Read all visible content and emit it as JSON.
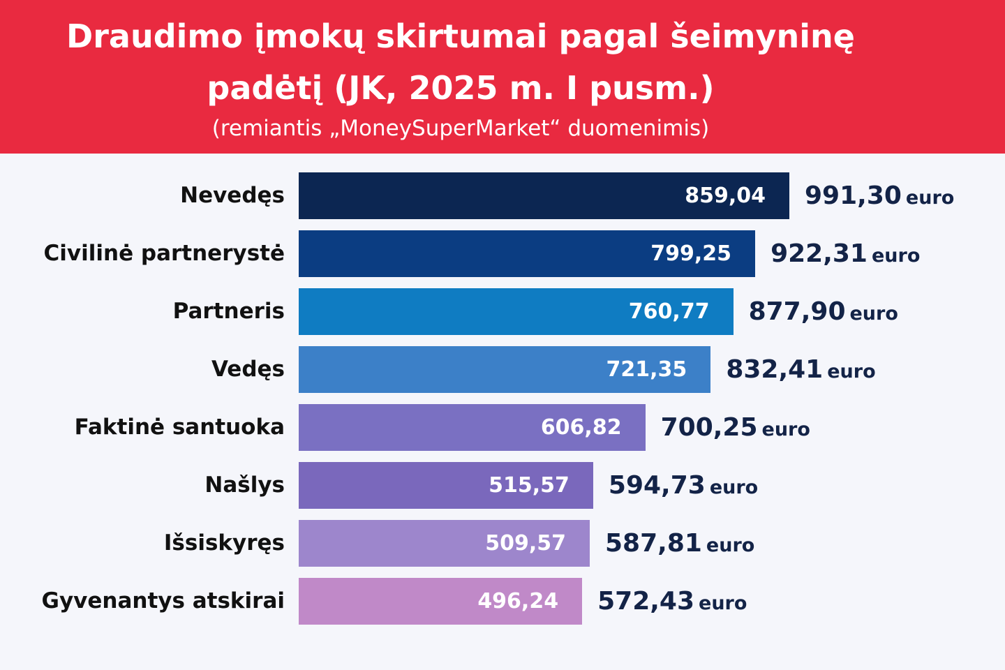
{
  "title_line1": "Draudimo įmokų skirtumai pagal šeimyninę",
  "title_line2": "padėtį (JK, 2025 m. I pusm.)",
  "subtitle": "(remiantis „MoneySuperMarket“ duomenimis)",
  "colors": {
    "header": "#e92a40",
    "total_text": "#132347",
    "bars": [
      "#0c2652",
      "#0b3d82",
      "#0f7cc2",
      "#3c80c8",
      "#7a70c2",
      "#7a68bc",
      "#9d86cc",
      "#c089c8"
    ]
  },
  "chart_data": {
    "type": "bar",
    "orientation": "horizontal",
    "categories": [
      "Nevedęs",
      "Civilinė partnerystė",
      "Partneris",
      "Vedęs",
      "Faktinė santuoka",
      "Našlys",
      "Išsiskyręs",
      "Gyvenantys atskirai"
    ],
    "series": [
      {
        "values": [
          859.04,
          799.25,
          760.77,
          721.35,
          606.82,
          515.57,
          509.57,
          496.24
        ],
        "labels": [
          "859,04",
          "799,25",
          "760,77",
          "721,35",
          "606,82",
          "515,57",
          "509,57",
          "496,24"
        ]
      },
      {
        "values": [
          991.3,
          922.31,
          877.9,
          832.41,
          700.25,
          594.73,
          587.81,
          572.43
        ],
        "labels": [
          "991,30",
          "922,31",
          "877,90",
          "832,41",
          "700,25",
          "594,73",
          "587,81",
          "572,43"
        ]
      }
    ],
    "unit": "euro",
    "grid": false,
    "legend": "none"
  }
}
